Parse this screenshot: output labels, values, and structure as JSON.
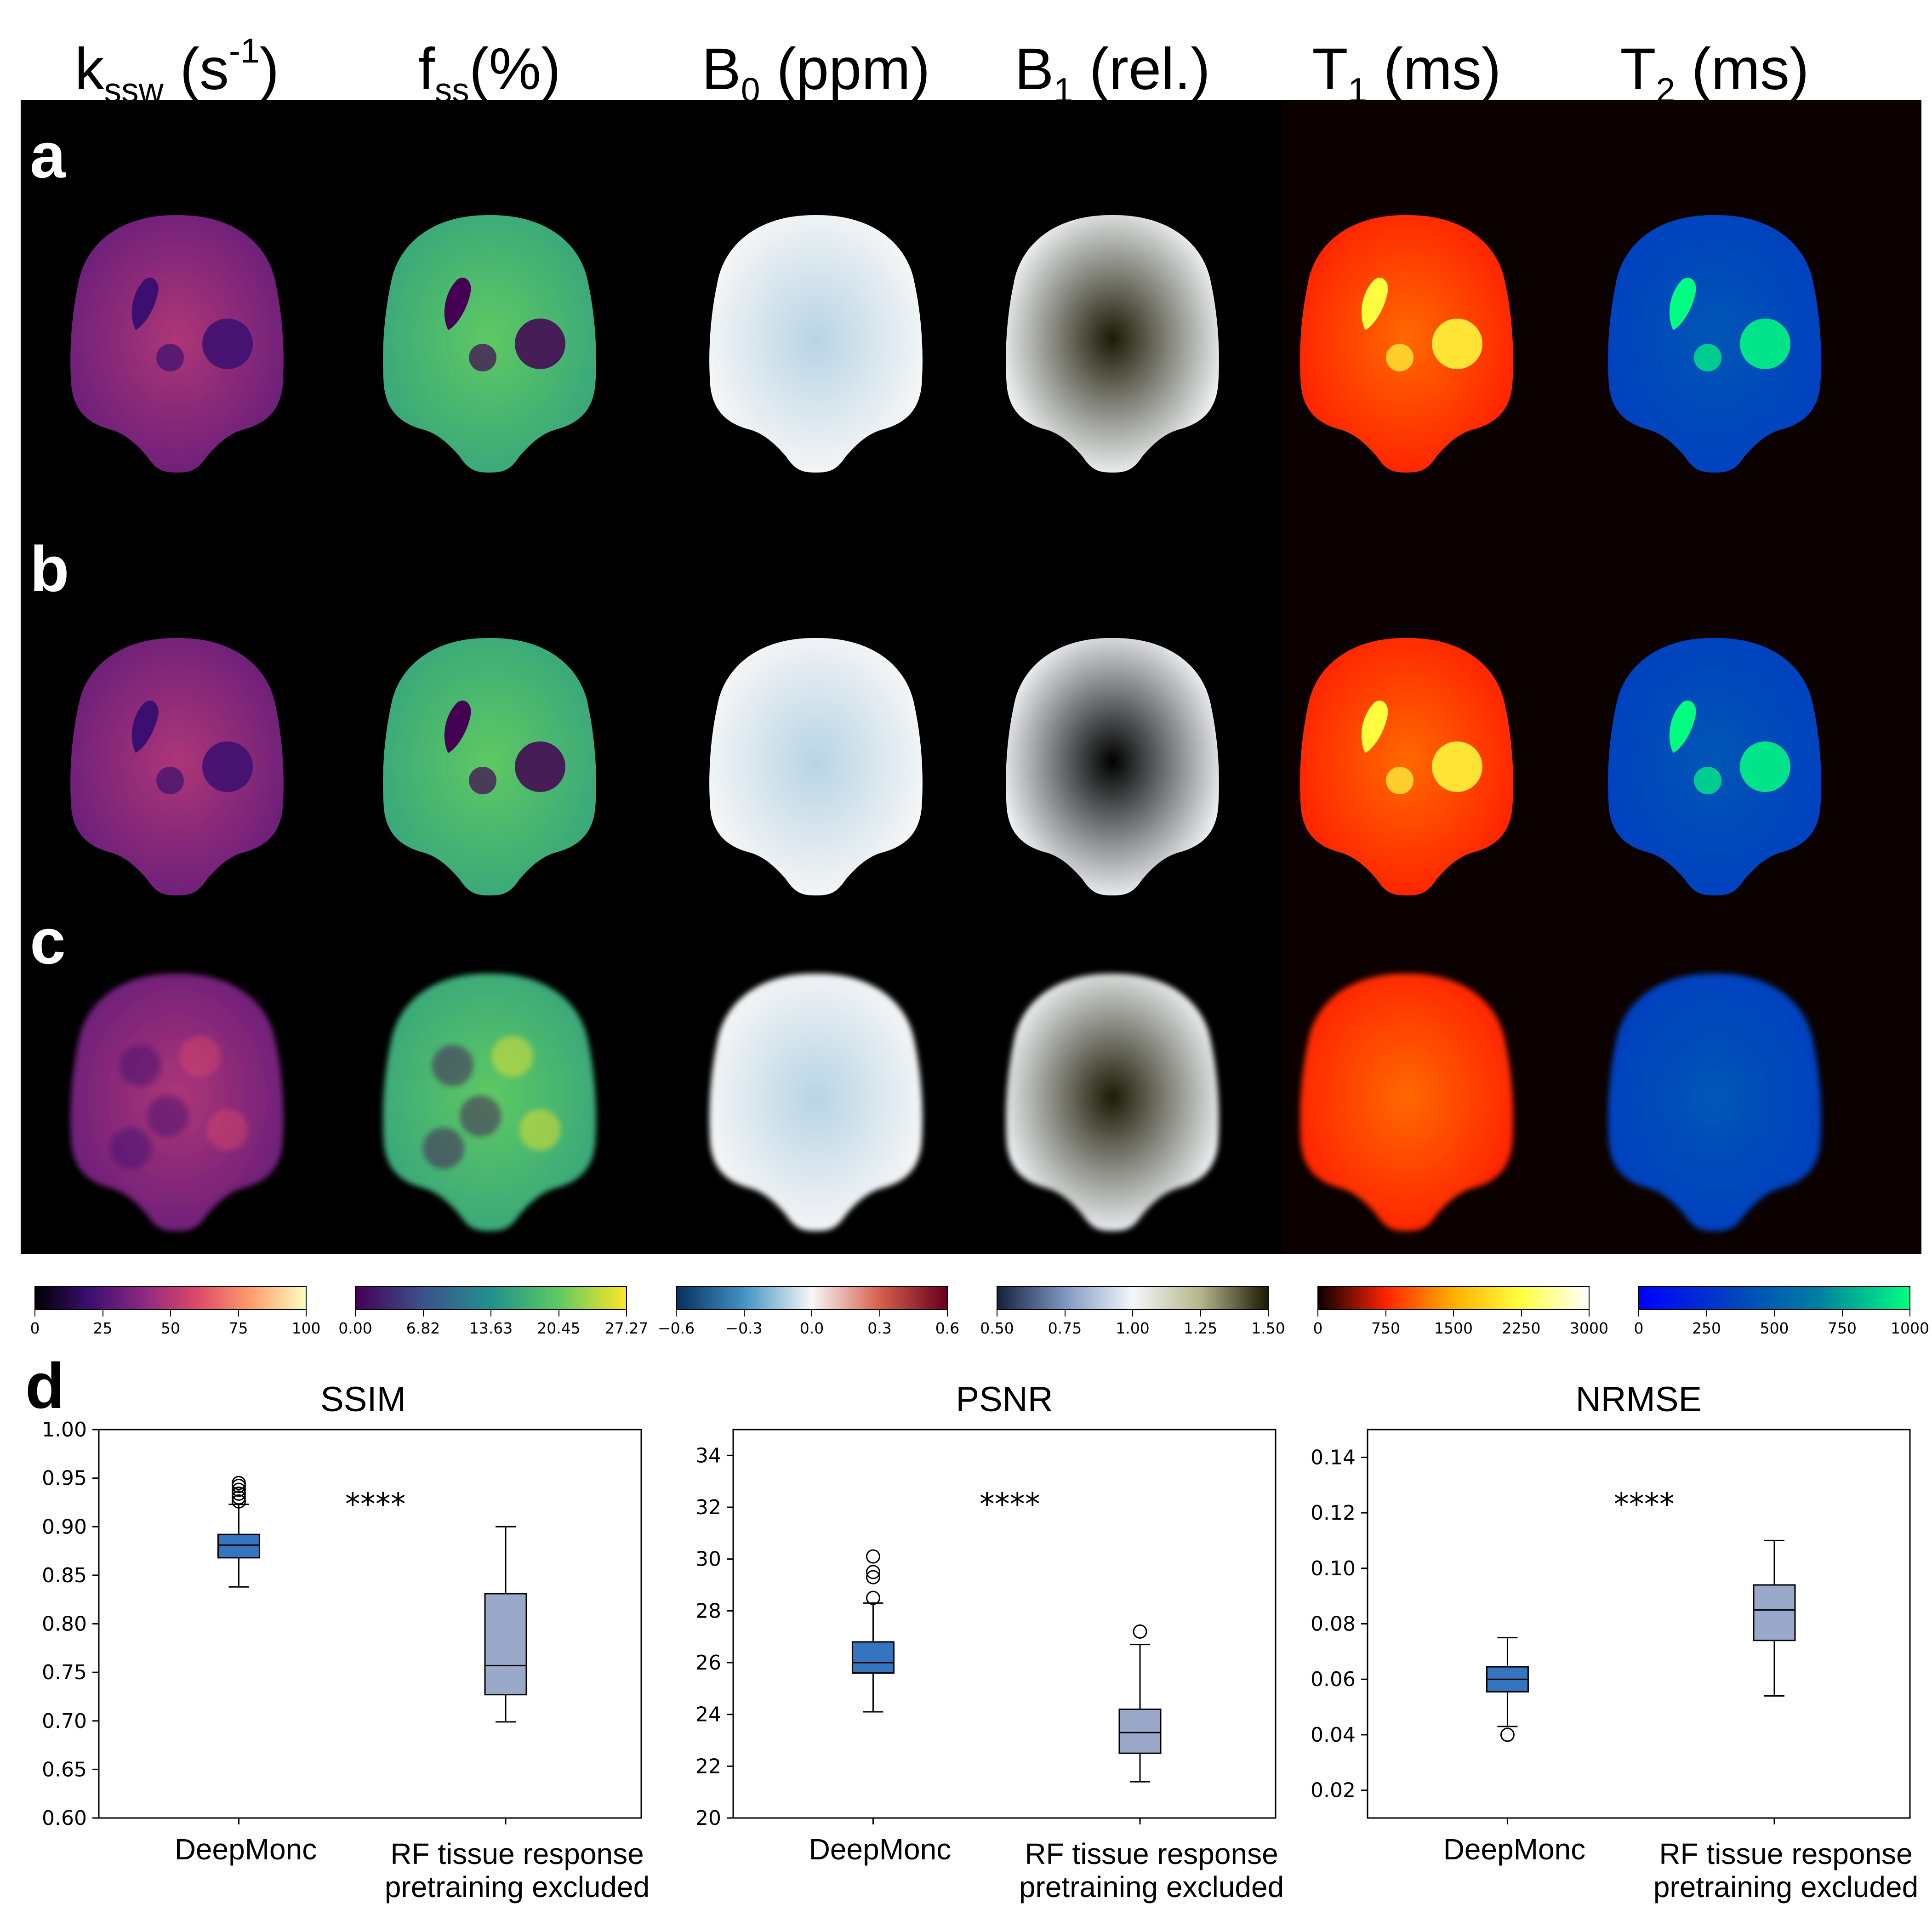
{
  "columns": [
    {
      "base": "k",
      "sub": "ssw",
      "unit_prefix": " (s",
      "sup": "-1",
      "unit_suffix": ")"
    },
    {
      "base": "f",
      "sub": "ss",
      "unit_prefix": "(%)",
      "sup": "",
      "unit_suffix": ""
    },
    {
      "base": "B",
      "sub": "0",
      "unit_prefix": " (ppm)",
      "sup": "",
      "unit_suffix": ""
    },
    {
      "base": "B",
      "sub": "1",
      "unit_prefix": " (rel.)",
      "sup": "",
      "unit_suffix": ""
    },
    {
      "base": "T",
      "sub": "1",
      "unit_prefix": " (ms)",
      "sup": "",
      "unit_suffix": ""
    },
    {
      "base": "T",
      "sub": "2",
      "unit_prefix": " (ms)",
      "sup": "",
      "unit_suffix": ""
    }
  ],
  "rows": [
    {
      "label": "a"
    },
    {
      "label": "b"
    },
    {
      "label": "c"
    }
  ],
  "panel_d_label": "d",
  "colors": {
    "kssw": [
      "#000004",
      "#3b0f70",
      "#8c2981",
      "#de4968",
      "#fe9f6d",
      "#fcfdbf"
    ],
    "fss": [
      "#440154",
      "#3b528b",
      "#21918c",
      "#5ec962",
      "#fde725"
    ],
    "b0": [
      "#053061",
      "#4393c3",
      "#f7f7f7",
      "#d6604d",
      "#67001f"
    ],
    "b1": [
      "#14213d",
      "#7f97c2",
      "#f4f7fa",
      "#b6b68a",
      "#1b1a05"
    ],
    "t1": [
      "#0b0000",
      "#ff2200",
      "#ffb000",
      "#ffff40",
      "#ffffff"
    ],
    "t2": [
      "#0000ff",
      "#0040c0",
      "#0080a0",
      "#00ff80"
    ],
    "box_deepmonc": "#3575c0",
    "box_rf": "#9aa9c9"
  },
  "colorbars": [
    {
      "map": "kssw",
      "ticks": [
        "0",
        "25",
        "50",
        "75",
        "100"
      ]
    },
    {
      "map": "fss",
      "ticks": [
        "0.00",
        "6.82",
        "13.63",
        "20.45",
        "27.27"
      ]
    },
    {
      "map": "b0",
      "ticks": [
        "−0.6",
        "−0.3",
        "0.0",
        "0.3",
        "0.6"
      ]
    },
    {
      "map": "b1",
      "ticks": [
        "0.50",
        "0.75",
        "1.00",
        "1.25",
        "1.50"
      ]
    },
    {
      "map": "t1",
      "ticks": [
        "0",
        "750",
        "1500",
        "2250",
        "3000"
      ]
    },
    {
      "map": "t2",
      "ticks": [
        "0",
        "250",
        "500",
        "750",
        "1000"
      ]
    }
  ],
  "chart_data": [
    {
      "type": "box",
      "title": "SSIM",
      "categories": [
        "DeepMonc",
        "RF tissue response\npretraining excluded"
      ],
      "ylim": [
        0.6,
        1.0
      ],
      "yticks": [
        0.6,
        0.65,
        0.7,
        0.75,
        0.8,
        0.85,
        0.9,
        0.95,
        1.0
      ],
      "tick_format": 2,
      "significance": "****",
      "boxes": [
        {
          "min": 0.838,
          "q1": 0.868,
          "median": 0.881,
          "q3": 0.892,
          "max": 0.923,
          "outliers": [
            0.926,
            0.93,
            0.934,
            0.938,
            0.942,
            0.945
          ]
        },
        {
          "min": 0.699,
          "q1": 0.727,
          "median": 0.757,
          "q3": 0.831,
          "max": 0.9,
          "outliers": []
        }
      ]
    },
    {
      "type": "box",
      "title": "PSNR",
      "categories": [
        "DeepMonc",
        "RF tissue response\npretraining excluded"
      ],
      "ylim": [
        20,
        35
      ],
      "yticks": [
        20,
        22,
        24,
        26,
        28,
        30,
        32,
        34
      ],
      "tick_format": 0,
      "significance": "****",
      "boxes": [
        {
          "min": 24.1,
          "q1": 25.6,
          "median": 26.0,
          "q3": 26.8,
          "max": 28.3,
          "outliers": [
            28.5,
            29.3,
            29.5,
            30.1
          ]
        },
        {
          "min": 21.4,
          "q1": 22.5,
          "median": 23.3,
          "q3": 24.2,
          "max": 26.7,
          "outliers": [
            27.2
          ]
        }
      ]
    },
    {
      "type": "box",
      "title": "NRMSE",
      "categories": [
        "DeepMonc",
        "RF tissue response\npretraining excluded"
      ],
      "ylim": [
        0.01,
        0.15
      ],
      "yticks": [
        0.02,
        0.04,
        0.06,
        0.08,
        0.1,
        0.12,
        0.14
      ],
      "tick_format": 2,
      "significance": "****",
      "boxes": [
        {
          "min": 0.043,
          "q1": 0.0555,
          "median": 0.06,
          "q3": 0.0645,
          "max": 0.075,
          "outliers": [
            0.04
          ]
        },
        {
          "min": 0.054,
          "q1": 0.074,
          "median": 0.085,
          "q3": 0.094,
          "max": 0.11,
          "outliers": []
        }
      ]
    }
  ]
}
